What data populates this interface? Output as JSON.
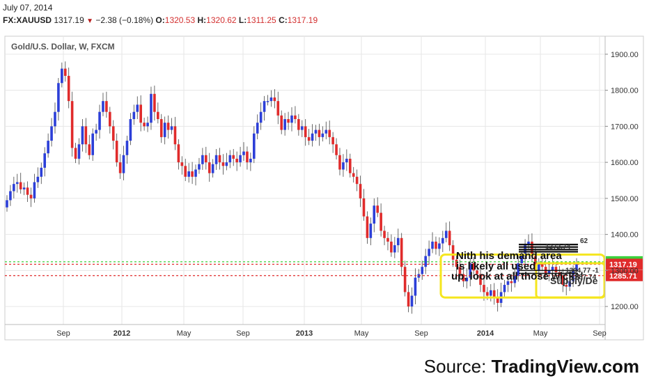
{
  "header": {
    "date": "July 07, 2014",
    "symbol": "FX:XAUUSD",
    "last": "1317.19",
    "change_arrow": "▼",
    "change": "−2.38 (−0.18%)",
    "open_label": "O:",
    "open": "1320.53",
    "high_label": "H:",
    "high": "1320.62",
    "low_label": "L:",
    "low": "1311.25",
    "close_label": "C:",
    "close": "1317.19"
  },
  "source": {
    "prefix": "Source: ",
    "brand": "TradingView.com"
  },
  "colors": {
    "up": "#2c3fd8",
    "down": "#e02b2b",
    "grid": "#e6e6e6",
    "green_line": "#3cd13c",
    "red_line": "#e02b2b",
    "yellow": "#f5e61e",
    "price_tag": "#e02b2b",
    "green_tag": "#3cd13c"
  },
  "chart_data": {
    "type": "candlestick",
    "title": "Gold/U.S. Dollar, W, FXCM",
    "ylim": [
      1150,
      1950
    ],
    "y_ticks": [
      "1200.00",
      "1300.00",
      "1400.00",
      "1500.00",
      "1600.00",
      "1700.00",
      "1800.00",
      "1900.00"
    ],
    "x_ticks": [
      "Sep",
      "2012",
      "May",
      "Sep",
      "2013",
      "May",
      "Sep",
      "2014",
      "May",
      "Sep"
    ],
    "closes": [
      1495,
      1520,
      1540,
      1545,
      1525,
      1530,
      1510,
      1500,
      1545,
      1560,
      1585,
      1625,
      1660,
      1700,
      1740,
      1820,
      1860,
      1840,
      1770,
      1640,
      1610,
      1650,
      1700,
      1650,
      1620,
      1680,
      1690,
      1740,
      1770,
      1740,
      1700,
      1660,
      1600,
      1570,
      1620,
      1660,
      1720,
      1740,
      1760,
      1710,
      1700,
      1710,
      1790,
      1740,
      1720,
      1670,
      1710,
      1690,
      1700,
      1650,
      1600,
      1590,
      1560,
      1575,
      1560,
      1580,
      1595,
      1620,
      1600,
      1570,
      1595,
      1620,
      1600,
      1590,
      1600,
      1620,
      1610,
      1600,
      1620,
      1630,
      1600,
      1610,
      1680,
      1710,
      1740,
      1770,
      1770,
      1780,
      1770,
      1730,
      1690,
      1720,
      1710,
      1730,
      1720,
      1690,
      1700,
      1670,
      1660,
      1680,
      1690,
      1670,
      1680,
      1690,
      1670,
      1650,
      1620,
      1580,
      1600,
      1610,
      1570,
      1560,
      1540,
      1500,
      1450,
      1390,
      1430,
      1480,
      1460,
      1410,
      1390,
      1380,
      1350,
      1370,
      1390,
      1310,
      1240,
      1200,
      1230,
      1280,
      1290,
      1310,
      1340,
      1360,
      1380,
      1360,
      1375,
      1390,
      1410,
      1370,
      1330,
      1310,
      1290,
      1270,
      1280,
      1320,
      1300,
      1290,
      1260,
      1240,
      1230,
      1245,
      1225,
      1210,
      1240,
      1260,
      1270,
      1265,
      1285,
      1320,
      1340,
      1370,
      1380,
      1340,
      1300,
      1320,
      1310,
      1290,
      1300,
      1310,
      1295,
      1285,
      1260,
      1255,
      1270,
      1300,
      1317
    ],
    "levels": [
      {
        "name": "green",
        "value": 1324.17,
        "label": "1324.17"
      },
      {
        "name": "current",
        "value": 1317.19,
        "label": "1317.19"
      },
      {
        "name": "red",
        "value": 1285.71,
        "label": "1285.71"
      }
    ],
    "annotations": [
      {
        "text": "Nith his demand area",
        "box": "demand"
      },
      {
        "text": "is likely all used",
        "box": "demand"
      },
      {
        "text": "up, look at all those wicks!",
        "box": "demand"
      },
      {
        "text": "Supply/De",
        "box": "supply"
      },
      {
        "text": "1304.77 -1",
        "box": "supply"
      },
      {
        "text": "1287.74",
        "box": "supply"
      },
      {
        "text": "1372.74",
        "box": "supply"
      },
      {
        "text": "62",
        "box": "supply"
      }
    ]
  }
}
